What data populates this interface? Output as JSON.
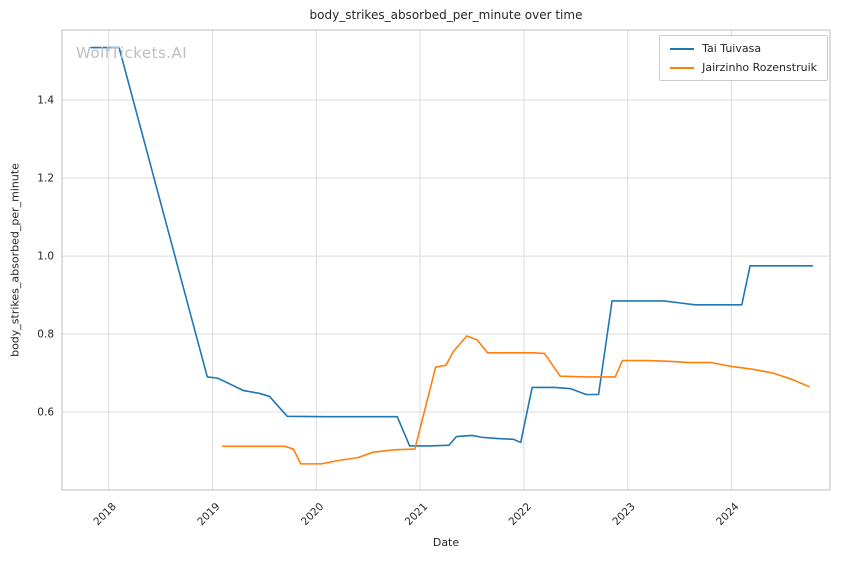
{
  "chart_data": {
    "type": "line",
    "title": "body_strikes_absorbed_per_minute over time",
    "xlabel": "Date",
    "ylabel": "body_strikes_absorbed_per_minute",
    "watermark": "WolfTickets.AI",
    "xlim": [
      2017.55,
      2024.95
    ],
    "ylim": [
      0.4,
      1.58
    ],
    "xticks": [
      2018,
      2019,
      2020,
      2021,
      2022,
      2023,
      2024
    ],
    "yticks": [
      0.6,
      0.8,
      1.0,
      1.2,
      1.4
    ],
    "grid": true,
    "legend_position": "upper right",
    "series": [
      {
        "name": "Tai Tuivasa",
        "color": "#1f77b4",
        "x": [
          2017.83,
          2018.1,
          2018.95,
          2019.05,
          2019.3,
          2019.45,
          2019.55,
          2019.72,
          2020.1,
          2020.78,
          2020.9,
          2021.1,
          2021.28,
          2021.35,
          2021.5,
          2021.6,
          2021.75,
          2021.9,
          2021.97,
          2022.08,
          2022.3,
          2022.45,
          2022.6,
          2022.72,
          2022.85,
          2023.1,
          2023.35,
          2023.5,
          2023.65,
          2023.95,
          2024.1,
          2024.18,
          2024.5,
          2024.78
        ],
        "y": [
          1.535,
          1.535,
          0.69,
          0.687,
          0.655,
          0.648,
          0.64,
          0.589,
          0.588,
          0.588,
          0.513,
          0.513,
          0.515,
          0.537,
          0.54,
          0.535,
          0.532,
          0.53,
          0.522,
          0.663,
          0.663,
          0.66,
          0.645,
          0.645,
          0.885,
          0.885,
          0.885,
          0.88,
          0.875,
          0.875,
          0.875,
          0.975,
          0.975,
          0.975
        ]
      },
      {
        "name": "Jairzinho Rozenstruik",
        "color": "#ff7f0e",
        "x": [
          2019.1,
          2019.45,
          2019.7,
          2019.78,
          2019.85,
          2020.05,
          2020.2,
          2020.4,
          2020.55,
          2020.75,
          2020.95,
          2021.15,
          2021.25,
          2021.32,
          2021.45,
          2021.55,
          2021.65,
          2021.9,
          2022.1,
          2022.2,
          2022.35,
          2022.6,
          2022.88,
          2022.95,
          2023.2,
          2023.4,
          2023.6,
          2023.8,
          2024.0,
          2024.2,
          2024.4,
          2024.6,
          2024.75
        ],
        "y": [
          0.512,
          0.512,
          0.512,
          0.505,
          0.467,
          0.467,
          0.475,
          0.483,
          0.497,
          0.503,
          0.505,
          0.715,
          0.72,
          0.755,
          0.795,
          0.785,
          0.752,
          0.752,
          0.752,
          0.75,
          0.692,
          0.69,
          0.69,
          0.732,
          0.732,
          0.73,
          0.727,
          0.727,
          0.717,
          0.71,
          0.7,
          0.682,
          0.665
        ]
      }
    ]
  }
}
